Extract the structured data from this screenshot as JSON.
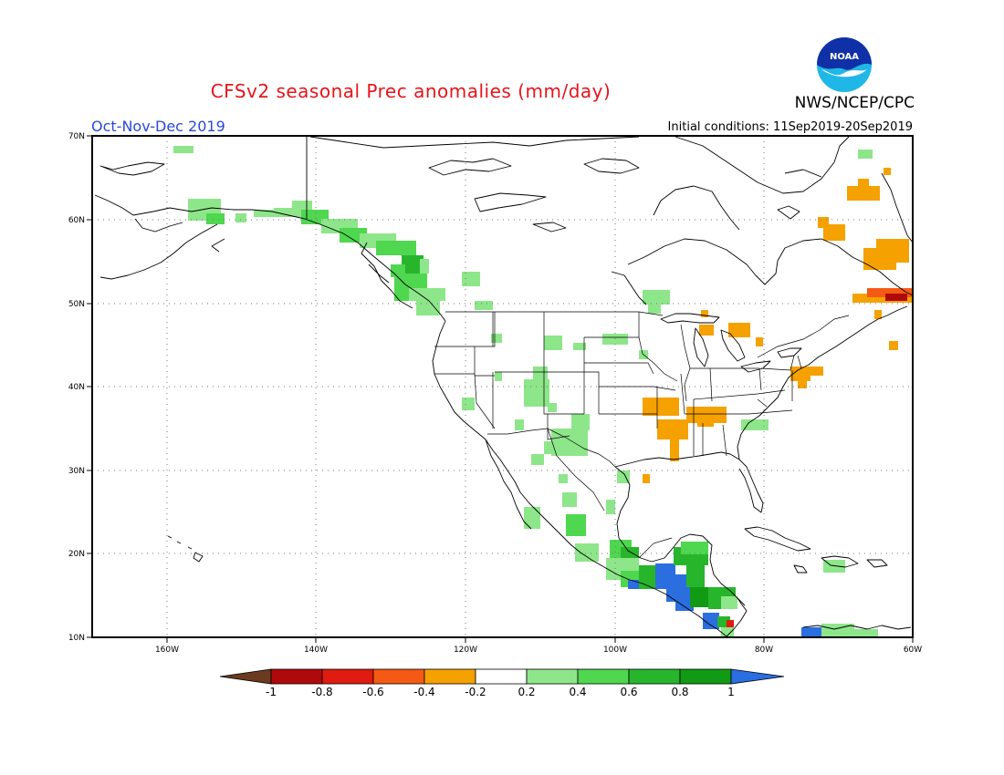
{
  "header": {
    "title": "CFSv2 seasonal Prec anomalies (mm/day)",
    "agency": "NWS/NCEP/CPC",
    "period": "Oct-Nov-Dec 2019",
    "initial_conditions": "Initial conditions: 11Sep2019-20Sep2019"
  },
  "logo": {
    "text": "NOAA",
    "icon": "noaa-logo"
  },
  "map": {
    "lon_range": [
      -172,
      -60
    ],
    "lat_range": [
      10,
      70
    ],
    "lon_ticks": [
      "160W",
      "140W",
      "120W",
      "100W",
      "80W",
      "60W"
    ],
    "lat_ticks": [
      "10N",
      "20N",
      "30N",
      "40N",
      "50N",
      "60N",
      "70N"
    ],
    "grid": "dotted"
  },
  "colorbar": {
    "labels": [
      "-1",
      "-0.8",
      "-0.6",
      "-0.4",
      "-0.2",
      "0.2",
      "0.4",
      "0.6",
      "0.8",
      "1"
    ],
    "colors": [
      "#6b3a1f",
      "#b0090b",
      "#e01b0f",
      "#f45a14",
      "#f5a100",
      "#ffffff",
      "#8ee68a",
      "#4fd74f",
      "#27b52b",
      "#119a13",
      "#2a6ee0"
    ]
  },
  "anomaly_levels": {
    "#f5a100": -0.3,
    "#f45a14": -0.5,
    "#b0090b": -0.9,
    "#e01b0f": -0.7,
    "#8ee68a": 0.3,
    "#4fd74f": 0.5,
    "#27b52b": 0.7,
    "#119a13": 0.9,
    "#2a6ee0": 1.1
  }
}
